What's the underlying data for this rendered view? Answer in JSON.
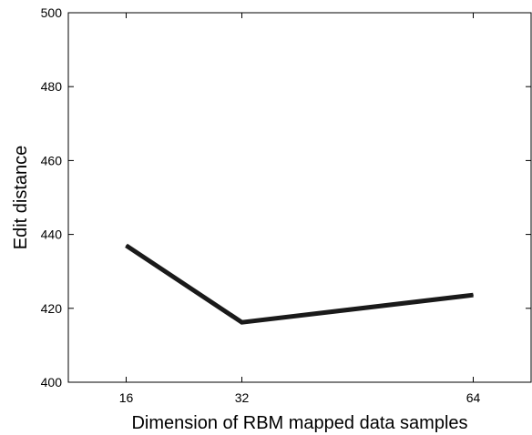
{
  "chart_data": {
    "type": "line",
    "title": "",
    "xlabel": "Dimension of RBM mapped data samples",
    "ylabel": "Edit distance",
    "x": [
      16,
      32,
      64
    ],
    "x_ticks": [
      "16",
      "32",
      "64"
    ],
    "xlim": [
      8,
      72
    ],
    "y_ticks": [
      "400",
      "420",
      "440",
      "460",
      "480",
      "500"
    ],
    "ylim": [
      400,
      500
    ],
    "grid": false,
    "series": [
      {
        "values": [
          437,
          416.2,
          423.6
        ],
        "color": "#1a1a1a"
      }
    ]
  }
}
